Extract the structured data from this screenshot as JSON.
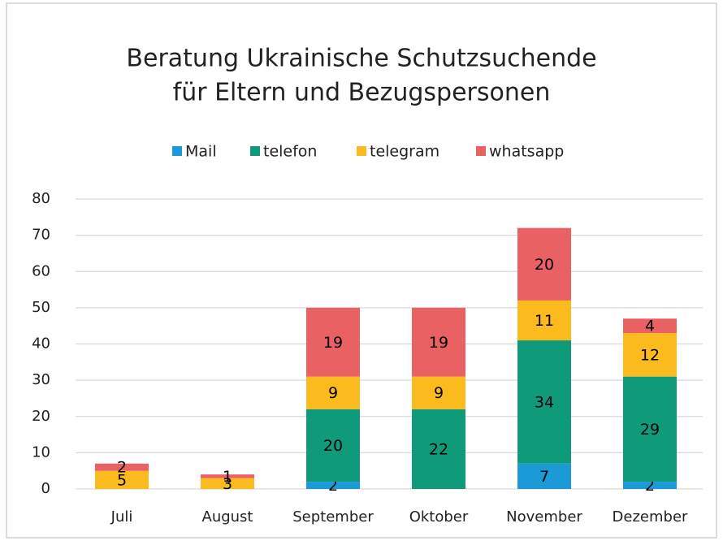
{
  "chart_data": {
    "type": "stacked_bar",
    "title": [
      "Beratung Ukrainische Schutzsuchende",
      "für Eltern und Bezugspersonen"
    ],
    "categories": [
      "Juli",
      "August",
      "September",
      "Oktober",
      "November",
      "Dezember"
    ],
    "series": [
      {
        "name": "Mail",
        "color": "#1a9bd7",
        "values": [
          0,
          0,
          2,
          0,
          7,
          2
        ]
      },
      {
        "name": "telefon",
        "color": "#0f9b7a",
        "values": [
          0,
          0,
          20,
          22,
          34,
          29
        ]
      },
      {
        "name": "telegram",
        "color": "#fbbb1e",
        "values": [
          5,
          3,
          9,
          9,
          11,
          12
        ]
      },
      {
        "name": "whatsapp",
        "color": "#ea6164",
        "values": [
          2,
          1,
          19,
          19,
          20,
          4
        ]
      }
    ],
    "ylim": [
      0,
      80
    ],
    "yticks": [
      0,
      10,
      20,
      30,
      40,
      50,
      60,
      70,
      80
    ],
    "grid": true,
    "legend": "top"
  }
}
